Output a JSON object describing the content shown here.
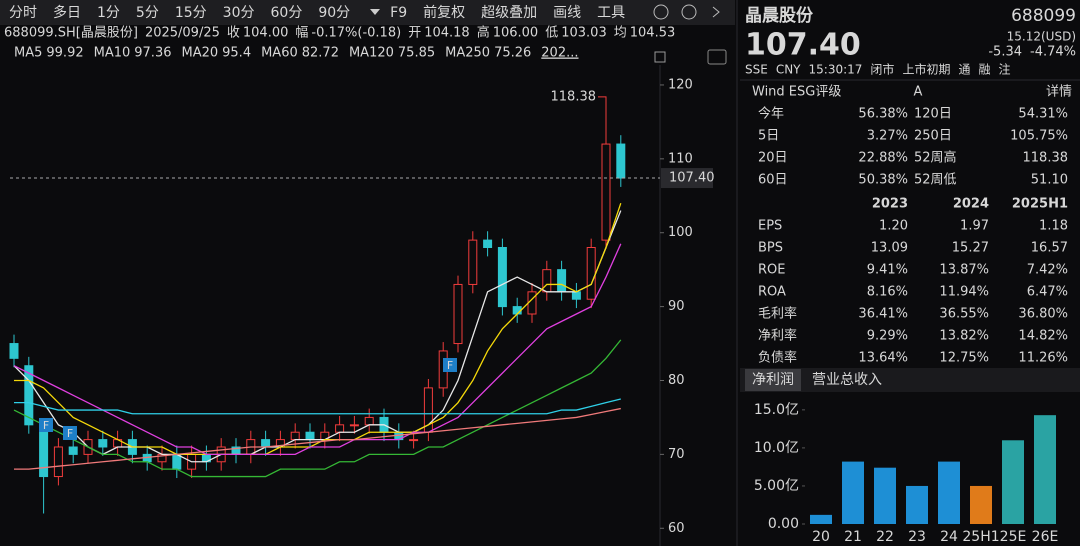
{
  "toolbar": [
    "分时",
    "多日",
    "1分",
    "5分",
    "15分",
    "30分",
    "60分",
    "90分",
    "F9",
    "前复权",
    "超级叠加",
    "画线",
    "工具"
  ],
  "info": [
    {
      "text": "688099.SH[晶晨股份]",
      "color": "#d8d8d8"
    },
    {
      "text": "2025/09/25",
      "color": "#d8d8d8"
    },
    {
      "text": "收",
      "color": "#d8d8d8"
    },
    {
      "text": "104.00",
      "color": "#2fbf5a"
    },
    {
      "text": "幅",
      "color": "#d8d8d8"
    },
    {
      "text": "-0.17%(-0.18)",
      "color": "#2fbf5a"
    },
    {
      "text": "开",
      "color": "#d8d8d8"
    },
    {
      "text": "104.18",
      "color": "#d8d8d8"
    },
    {
      "text": "高",
      "color": "#d8d8d8"
    },
    {
      "text": "106.00",
      "color": "#f23c3c"
    },
    {
      "text": "低",
      "color": "#d8d8d8"
    },
    {
      "text": "103.03",
      "color": "#2fbf5a"
    },
    {
      "text": "均",
      "color": "#d8d8d8"
    },
    {
      "text": "104.53",
      "color": "#f23c3c"
    }
  ],
  "chart_data": [
    {
      "type": "candlestick",
      "period_label": "202...",
      "ylim": [
        57.6,
        122.7
      ],
      "yticks": [
        60,
        70,
        80,
        90,
        100,
        110,
        120
      ],
      "up_color": "#f23c3c",
      "down_color": "#2ec7d0",
      "last_price": {
        "value": 107.4,
        "label": "107.40"
      },
      "annotations": [
        "118.38"
      ],
      "markers": [
        "F",
        "F",
        "F"
      ],
      "ohlc": [
        [
          85,
          86.2,
          81.8,
          83
        ],
        [
          82,
          83.2,
          72.8,
          74
        ],
        [
          73,
          74.2,
          62,
          67
        ],
        [
          67,
          72.2,
          65.8,
          71
        ],
        [
          71,
          72.2,
          68.8,
          70
        ],
        [
          70,
          73.2,
          68.8,
          72
        ],
        [
          72,
          73.2,
          69.8,
          71
        ],
        [
          71,
          73.2,
          69.8,
          72
        ],
        [
          72,
          73.2,
          68.8,
          70
        ],
        [
          70,
          71.2,
          67.8,
          69
        ],
        [
          69,
          71.2,
          67.8,
          70
        ],
        [
          70,
          71.2,
          66.8,
          68
        ],
        [
          68,
          71.2,
          66.8,
          70
        ],
        [
          70,
          71.2,
          67.8,
          69
        ],
        [
          69,
          72.2,
          67.8,
          71
        ],
        [
          71,
          72.2,
          68.8,
          70
        ],
        [
          70,
          73.2,
          68.8,
          72
        ],
        [
          72,
          73.2,
          69.8,
          71
        ],
        [
          71,
          73.2,
          69.8,
          72
        ],
        [
          72,
          74.2,
          70.8,
          73
        ],
        [
          73,
          74.2,
          70.8,
          72
        ],
        [
          72,
          74.2,
          70.8,
          73
        ],
        [
          73,
          75.2,
          71.8,
          74
        ],
        [
          74,
          75.2,
          72.8,
          74
        ],
        [
          74,
          76.2,
          72.8,
          75
        ],
        [
          75,
          76.2,
          71.8,
          73
        ],
        [
          73,
          74.2,
          70.8,
          72
        ],
        [
          72,
          73.2,
          70.8,
          72
        ],
        [
          73,
          80.2,
          71.8,
          79
        ],
        [
          79,
          85.2,
          77.8,
          84
        ],
        [
          85,
          94.2,
          83.8,
          93
        ],
        [
          93,
          100.2,
          91.8,
          99
        ],
        [
          99,
          100.2,
          96.8,
          98
        ],
        [
          98,
          99.2,
          88.8,
          90
        ],
        [
          90,
          91.2,
          87.8,
          89
        ],
        [
          89,
          93.2,
          87.8,
          92
        ],
        [
          92,
          96.2,
          90.8,
          95
        ],
        [
          95,
          96.2,
          90.8,
          92
        ],
        [
          92,
          93.2,
          89.8,
          91
        ],
        [
          91,
          99.2,
          89.8,
          98
        ],
        [
          99,
          118.38,
          97.8,
          112
        ],
        [
          112,
          113.2,
          106.2,
          107.4
        ]
      ],
      "ma": [
        {
          "name": "MA5",
          "current": 99.92,
          "color": "#e8e8e8",
          "values": [
            82,
            80,
            77,
            74,
            73,
            71,
            70,
            71,
            71,
            71,
            70,
            70,
            69,
            69,
            70,
            70,
            70,
            71,
            71,
            72,
            72,
            72,
            73,
            73,
            74,
            74,
            73,
            73,
            74,
            76,
            80,
            86,
            92,
            93,
            94,
            93,
            92,
            92,
            92,
            93,
            98,
            103
          ]
        },
        {
          "name": "MA10",
          "current": 97.36,
          "color": "#f5d90a",
          "values": [
            80,
            80,
            79,
            77,
            75,
            74,
            73,
            72,
            71,
            71,
            71,
            70,
            70,
            70,
            70,
            70,
            70,
            70,
            71,
            71,
            71,
            72,
            72,
            72,
            73,
            73,
            73,
            73,
            74,
            75,
            77,
            80,
            84,
            87,
            89,
            91,
            93,
            93,
            92,
            93,
            98,
            104
          ]
        },
        {
          "name": "MA20",
          "current": 95.4,
          "color": "#e040e0",
          "values": [
            82,
            81,
            80,
            79,
            78,
            77,
            76,
            75,
            74,
            73,
            72,
            71,
            71,
            70,
            70,
            70,
            70,
            70,
            70,
            70,
            71,
            71,
            71,
            72,
            72,
            72,
            72,
            73,
            73,
            74,
            75,
            77,
            79,
            81,
            83,
            85,
            87,
            88,
            89,
            90,
            94,
            98.5
          ]
        },
        {
          "name": "MA60",
          "current": 82.72,
          "color": "#35b835",
          "values": [
            76,
            75,
            74,
            73,
            72,
            71,
            70,
            70,
            69,
            69,
            68,
            68,
            67,
            67,
            67,
            67,
            67,
            67,
            68,
            68,
            68,
            68,
            69,
            69,
            70,
            70,
            70,
            70,
            71,
            71,
            72,
            73,
            74,
            75,
            76,
            77,
            78,
            79,
            80,
            81,
            83,
            85.5
          ]
        },
        {
          "name": "MA120",
          "current": 75.85,
          "color": "#2fd0e8",
          "values": [
            77,
            77,
            76.5,
            76,
            76,
            76,
            76,
            76,
            75.5,
            75.5,
            75.5,
            75.5,
            75.5,
            75.5,
            75.5,
            75.5,
            75.5,
            75.5,
            75.5,
            75.5,
            75.5,
            75.5,
            75.5,
            75.5,
            75.5,
            75.5,
            75.5,
            75.5,
            75.5,
            75.5,
            75.5,
            75.5,
            75.5,
            75.5,
            75.5,
            75.5,
            75.5,
            76,
            76,
            76.5,
            77,
            77.5
          ]
        },
        {
          "name": "MA250",
          "current": 75.26,
          "color": "#f07a7a",
          "values": [
            68,
            68,
            68.2,
            68.4,
            68.6,
            68.8,
            69,
            69.2,
            69.4,
            69.6,
            69.8,
            70,
            70.2,
            70.4,
            70.6,
            70.8,
            71,
            71,
            71.2,
            71.4,
            71.6,
            71.8,
            72,
            72,
            72.2,
            72.4,
            72.6,
            72.8,
            73,
            73.2,
            73.4,
            73.6,
            73.8,
            74,
            74.2,
            74.4,
            74.6,
            74.8,
            75,
            75.4,
            75.8,
            76.2
          ]
        }
      ]
    },
    {
      "type": "bar",
      "categories": [
        "20",
        "21",
        "22",
        "23",
        "24",
        "25H1",
        "25E",
        "26E"
      ],
      "values": [
        1.2,
        8.2,
        7.4,
        5.0,
        8.2,
        5.0,
        11.0,
        14.3
      ],
      "colors": [
        "#1e8fd5",
        "#1e8fd5",
        "#1e8fd5",
        "#1e8fd5",
        "#1e8fd5",
        "#e07b1a",
        "#2aa3a3",
        "#2aa3a3"
      ],
      "ylim": [
        0,
        15.9
      ],
      "yticks": [
        {
          "value": 0,
          "label": "0.00"
        },
        {
          "value": 5,
          "label": "5.00亿"
        },
        {
          "value": 10,
          "label": "10.0亿"
        },
        {
          "value": 15,
          "label": "15.0亿"
        }
      ]
    }
  ],
  "panel": {
    "name": "晶晨股份",
    "code": "688099",
    "price": "107.40",
    "usd": "15.12(USD)",
    "change": "-5.34",
    "pct": "-4.74%",
    "status": [
      "SSE",
      "CNY",
      "15:30:17",
      "闭市",
      "上市初期",
      "通",
      "融",
      "注"
    ],
    "esg": [
      "Wind ESG评级",
      "A",
      "详情"
    ],
    "returns": [
      [
        "今年",
        "56.38%",
        "120日",
        "54.31%"
      ],
      [
        "5日",
        "3.27%",
        "250日",
        "105.75%"
      ],
      [
        "20日",
        "22.88%",
        "52周高",
        "118.38"
      ],
      [
        "60日",
        "50.38%",
        "52周低",
        "51.10"
      ]
    ],
    "fin_header": [
      "2023",
      "2024",
      "2025H1"
    ],
    "fin": [
      [
        "EPS",
        "1.20",
        "1.97",
        "1.18"
      ],
      [
        "BPS",
        "13.09",
        "15.27",
        "16.57"
      ],
      [
        "ROE",
        "9.41%",
        "13.87%",
        "7.42%"
      ],
      [
        "ROA",
        "8.16%",
        "11.94%",
        "6.47%"
      ],
      [
        "毛利率",
        "36.41%",
        "36.55%",
        "36.80%"
      ],
      [
        "净利率",
        "9.29%",
        "13.82%",
        "14.82%"
      ],
      [
        "负债率",
        "13.64%",
        "12.75%",
        "11.26%"
      ]
    ],
    "tabs": [
      "净利润",
      "营业总收入"
    ]
  }
}
